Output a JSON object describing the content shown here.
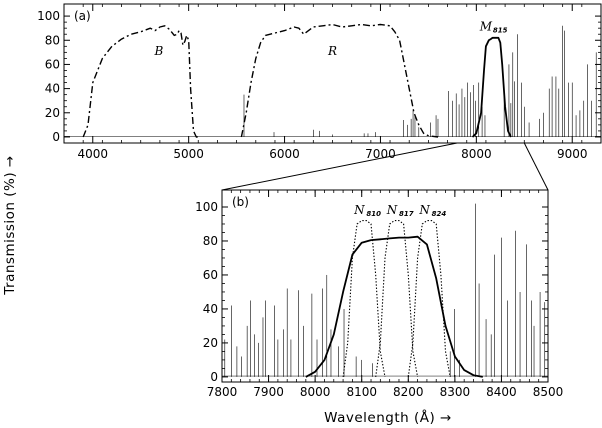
{
  "chart_data": [
    {
      "panel": "(a)",
      "type": "line",
      "xlim": [
        3700,
        9300
      ],
      "ylim": [
        -5,
        110
      ],
      "xticks": [
        4000,
        5000,
        6000,
        7000,
        8000,
        9000
      ],
      "yticks": [
        0,
        20,
        40,
        60,
        80,
        100
      ],
      "grid": false,
      "series": [
        {
          "name": "B",
          "style": "dash-dot",
          "x": [
            3900,
            3950,
            4000,
            4100,
            4200,
            4300,
            4400,
            4500,
            4600,
            4650,
            4700,
            4750,
            4800,
            4850,
            4880,
            4900,
            4920,
            4940,
            4960,
            4980,
            5000,
            5020,
            5050,
            5080,
            5100
          ],
          "y": [
            0,
            10,
            45,
            65,
            75,
            81,
            85,
            87,
            90,
            88,
            91,
            92,
            89,
            84,
            85,
            88,
            86,
            76,
            79,
            84,
            80,
            40,
            5,
            0,
            0
          ]
        },
        {
          "name": "R",
          "style": "dash-dot",
          "x": [
            5550,
            5600,
            5650,
            5700,
            5750,
            5800,
            5900,
            6000,
            6100,
            6150,
            6200,
            6300,
            6400,
            6500,
            6600,
            6700,
            6800,
            6900,
            7000,
            7100,
            7150,
            7200,
            7250,
            7300,
            7350,
            7400,
            7450,
            7500,
            7600
          ],
          "y": [
            0,
            20,
            45,
            65,
            78,
            84,
            86,
            88,
            91,
            90,
            85,
            91,
            92,
            93,
            91,
            92,
            93,
            92,
            93,
            92,
            87,
            80,
            60,
            40,
            20,
            10,
            3,
            1,
            0
          ]
        },
        {
          "name": "M815",
          "style": "solid-thick",
          "x": [
            7960,
            8000,
            8050,
            8080,
            8100,
            8130,
            8150,
            8170,
            8200,
            8230,
            8250,
            8270,
            8300,
            8330,
            8360
          ],
          "y": [
            0,
            3,
            20,
            55,
            75,
            80,
            81,
            82,
            82,
            82,
            78,
            60,
            25,
            5,
            0
          ]
        }
      ],
      "annotations": [
        "(a)",
        "B",
        "R",
        "M",
        "815"
      ]
    },
    {
      "panel": "(b)",
      "type": "line",
      "xlim": [
        7800,
        8500
      ],
      "ylim": [
        -3,
        110
      ],
      "xticks": [
        7800,
        7900,
        8000,
        8100,
        8200,
        8300,
        8400,
        8500
      ],
      "yticks": [
        0,
        20,
        40,
        60,
        80,
        100
      ],
      "grid": false,
      "series": [
        {
          "name": "M815",
          "style": "solid-thick",
          "x": [
            7980,
            8000,
            8020,
            8040,
            8060,
            8080,
            8100,
            8120,
            8140,
            8160,
            8180,
            8200,
            8220,
            8240,
            8260,
            8280,
            8300,
            8320,
            8340,
            8360
          ],
          "y": [
            0,
            3,
            10,
            25,
            50,
            72,
            79,
            80.5,
            81,
            81.5,
            82,
            82,
            82.5,
            78,
            58,
            30,
            12,
            4,
            1,
            0
          ]
        },
        {
          "name": "N810",
          "style": "dotted",
          "x": [
            8060,
            8070,
            8080,
            8090,
            8100,
            8110,
            8120,
            8130,
            8140,
            8150
          ],
          "y": [
            0,
            20,
            70,
            90,
            92,
            92,
            90,
            60,
            15,
            0
          ]
        },
        {
          "name": "N817",
          "style": "dotted",
          "x": [
            8130,
            8140,
            8150,
            8160,
            8170,
            8180,
            8190,
            8200,
            8210,
            8220
          ],
          "y": [
            0,
            20,
            70,
            90,
            92,
            92,
            90,
            60,
            15,
            0
          ]
        },
        {
          "name": "N824",
          "style": "dotted",
          "x": [
            8200,
            8210,
            8220,
            8230,
            8240,
            8250,
            8260,
            8270,
            8280,
            8290
          ],
          "y": [
            0,
            20,
            70,
            90,
            92,
            92,
            90,
            60,
            15,
            0
          ]
        }
      ],
      "annotations": [
        "(b)",
        "N",
        "810",
        "N",
        "817",
        "N",
        "824"
      ]
    }
  ],
  "sky_lines": {
    "style": "thin-solid",
    "a": [
      [
        5577,
        35
      ],
      [
        5890,
        4
      ],
      [
        6300,
        6
      ],
      [
        6364,
        5
      ],
      [
        6500,
        2
      ],
      [
        6830,
        3
      ],
      [
        6870,
        3
      ],
      [
        6950,
        4
      ],
      [
        7240,
        14
      ],
      [
        7280,
        10
      ],
      [
        7320,
        15
      ],
      [
        7340,
        22
      ],
      [
        7360,
        18
      ],
      [
        7400,
        8
      ],
      [
        7520,
        12
      ],
      [
        7580,
        18
      ],
      [
        7600,
        15
      ],
      [
        7710,
        38
      ],
      [
        7750,
        30
      ],
      [
        7790,
        36
      ],
      [
        7820,
        27
      ],
      [
        7850,
        40
      ],
      [
        7880,
        33
      ],
      [
        7910,
        45
      ],
      [
        7940,
        37
      ],
      [
        7970,
        43
      ],
      [
        7990,
        30
      ],
      [
        8025,
        45
      ],
      [
        8060,
        25
      ],
      [
        8090,
        18
      ],
      [
        8290,
        38
      ],
      [
        8340,
        60
      ],
      [
        8360,
        28
      ],
      [
        8380,
        70
      ],
      [
        8400,
        46
      ],
      [
        8430,
        85
      ],
      [
        8470,
        45
      ],
      [
        8500,
        25
      ],
      [
        8550,
        12
      ],
      [
        8660,
        15
      ],
      [
        8700,
        20
      ],
      [
        8760,
        40
      ],
      [
        8790,
        50
      ],
      [
        8830,
        50
      ],
      [
        8860,
        40
      ],
      [
        8900,
        92
      ],
      [
        8920,
        88
      ],
      [
        8960,
        45
      ],
      [
        9000,
        45
      ],
      [
        9040,
        18
      ],
      [
        9080,
        22
      ],
      [
        9120,
        30
      ],
      [
        9160,
        60
      ],
      [
        9200,
        30
      ],
      [
        9250,
        70
      ]
    ],
    "b": [
      [
        7806,
        22
      ],
      [
        7820,
        42
      ],
      [
        7832,
        18
      ],
      [
        7842,
        12
      ],
      [
        7854,
        30
      ],
      [
        7861,
        45
      ],
      [
        7870,
        25
      ],
      [
        7878,
        20
      ],
      [
        7888,
        35
      ],
      [
        7893,
        45
      ],
      [
        7913,
        42
      ],
      [
        7920,
        22
      ],
      [
        7932,
        28
      ],
      [
        7940,
        52
      ],
      [
        7948,
        22
      ],
      [
        7964,
        51
      ],
      [
        7975,
        30
      ],
      [
        7993,
        49
      ],
      [
        8004,
        22
      ],
      [
        8016,
        52
      ],
      [
        8025,
        60
      ],
      [
        8034,
        28
      ],
      [
        8050,
        18
      ],
      [
        8062,
        40
      ],
      [
        8088,
        12
      ],
      [
        8100,
        10
      ],
      [
        8123,
        8
      ],
      [
        8290,
        15
      ],
      [
        8299,
        40
      ],
      [
        8310,
        10
      ],
      [
        8344,
        102
      ],
      [
        8352,
        55
      ],
      [
        8367,
        34
      ],
      [
        8378,
        25
      ],
      [
        8385,
        72
      ],
      [
        8400,
        82
      ],
      [
        8413,
        45
      ],
      [
        8430,
        86
      ],
      [
        8440,
        50
      ],
      [
        8454,
        78
      ],
      [
        8465,
        45
      ],
      [
        8470,
        30
      ],
      [
        8483,
        50
      ],
      [
        8493,
        44
      ]
    ]
  },
  "ylabel": "Transmission (%) →",
  "xlabel": "Wavelength (Å) →",
  "colors": {
    "line": "#000000",
    "background": "#ffffff"
  }
}
